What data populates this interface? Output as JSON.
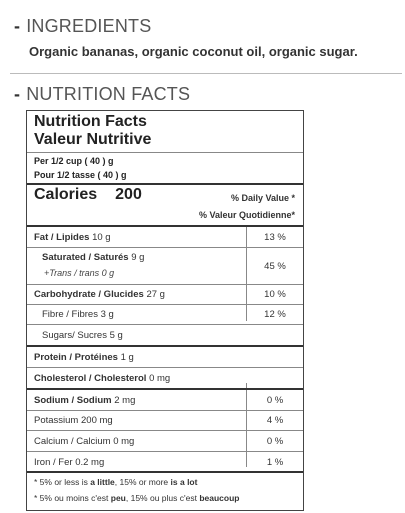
{
  "sections": {
    "ingredients": {
      "dash": "-",
      "title": "INGREDIENTS",
      "text": "Organic bananas, organic coconut oil, organic sugar."
    },
    "nutrition": {
      "dash": "-",
      "title": "NUTRITION FACTS"
    }
  },
  "facts": {
    "title_en": "Nutrition Facts",
    "title_fr": "Valeur Nutritive",
    "serving_en": "Per 1/2 cup ( 40 ) g",
    "serving_fr": "Pour 1/2 tasse ( 40 ) g",
    "calories_label": "Calories",
    "calories_value": "200",
    "dv_en": "% Daily Value *",
    "dv_fr": "% Valeur Quotidienne*",
    "rows": {
      "fat": {
        "label": "Fat / Lipides",
        "amount": "10 g",
        "dv": "13 %"
      },
      "saturated": {
        "label": "Saturated / Saturés",
        "amount": "9 g",
        "trans_label": "+Trans / trans",
        "trans_amount": "0 g",
        "dv": "45 %"
      },
      "carbohydrate": {
        "label": "Carbohydrate / Glucides",
        "amount": "27 g",
        "dv": "10 %"
      },
      "fibre": {
        "label": "Fibre / Fibres",
        "amount": "3 g",
        "dv": "12 %"
      },
      "sugars": {
        "label": "Sugars/ Sucres",
        "amount": "5 g"
      },
      "protein": {
        "label": "Protein / Protéines",
        "amount": "1 g"
      },
      "cholesterol": {
        "label": "Cholesterol / Cholesterol",
        "amount": "0 mg"
      },
      "sodium": {
        "label": "Sodium / Sodium",
        "amount": "2 mg",
        "dv": "0 %"
      },
      "potassium": {
        "label": "Potassium",
        "amount": "200 mg",
        "dv": "4 %"
      },
      "calcium": {
        "label": "Calcium / Calcium",
        "amount": "0 mg",
        "dv": "0 %"
      },
      "iron": {
        "label": "Iron / Fer",
        "amount": "0.2 mg",
        "dv": "1 %"
      }
    },
    "footnote_en": {
      "a": "* 5% or less is ",
      "b": "a little",
      "c": ", 15% or more ",
      "d": "is a lot"
    },
    "footnote_fr": {
      "a": "* 5% ou moins c'est ",
      "b": "peu",
      "c": ", 15% ou plus c'est ",
      "d": "beaucoup"
    }
  }
}
